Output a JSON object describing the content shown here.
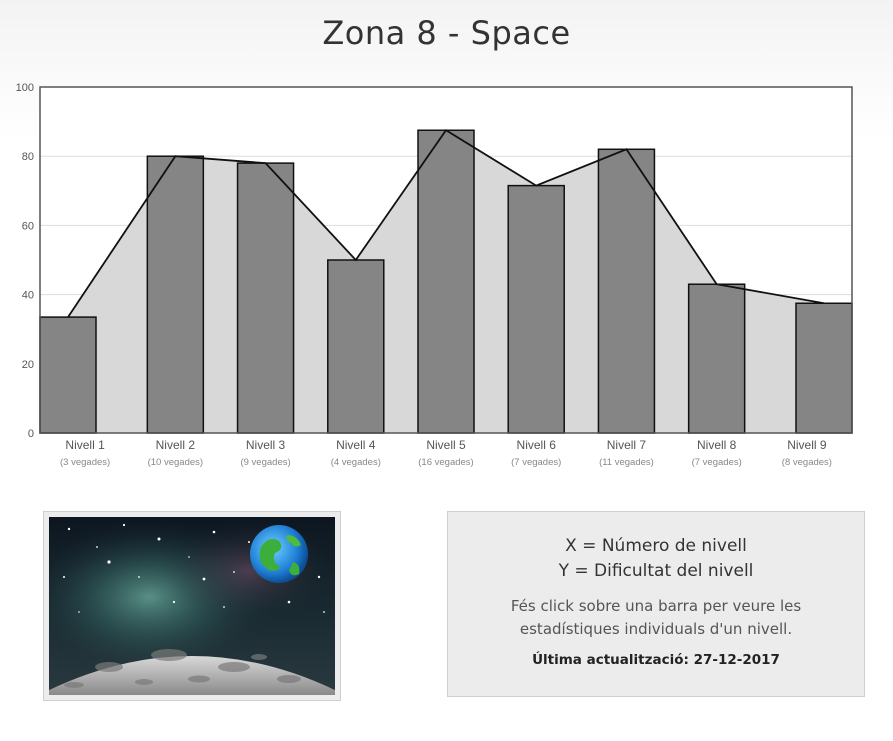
{
  "page": {
    "title": "Zona 8 - Space"
  },
  "chart_data": {
    "type": "bar",
    "categories": [
      "Nivell 1",
      "Nivell 2",
      "Nivell 3",
      "Nivell 4",
      "Nivell 5",
      "Nivell 6",
      "Nivell 7",
      "Nivell 8",
      "Nivell 9"
    ],
    "sublabels": [
      "(3 vegades)",
      "(10 vegades)",
      "(9 vegades)",
      "(4 vegades)",
      "(16 vegades)",
      "(7 vegades)",
      "(11 vegades)",
      "(7 vegades)",
      "(8 vegades)"
    ],
    "values": [
      33.5,
      80,
      78,
      50,
      87.5,
      71.5,
      82,
      43,
      37.5
    ],
    "ylim": [
      0,
      100
    ],
    "yticks": [
      0,
      20,
      40,
      60,
      80,
      100
    ],
    "grid": true,
    "overlay": "line-area",
    "colors": {
      "bar": "#858585",
      "bar_border": "#111111",
      "area": "#d8d8d8",
      "line": "#111111"
    }
  },
  "info": {
    "x_label": "X = Número de nivell",
    "y_label": "Y = Dificultat del nivell",
    "hint": "Fés click sobre una barra per veure les estadístiques individuals d'un nivell.",
    "updated": "Última actualització: 27-12-2017"
  },
  "image": {
    "icon": "space-moon-earth-image"
  }
}
